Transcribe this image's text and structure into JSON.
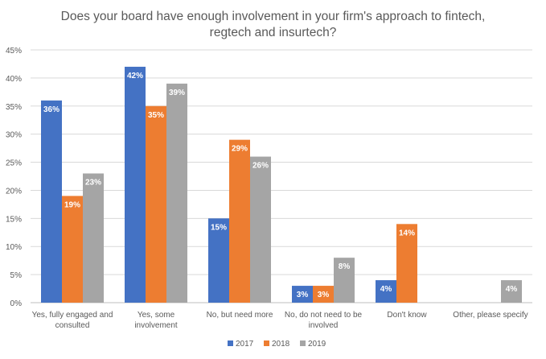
{
  "chart_data": {
    "type": "bar",
    "title_lines": [
      "Does your board have enough involvement in your firm's approach to fintech,",
      "regtech and insurtech?"
    ],
    "categories": [
      [
        "Yes, fully engaged and",
        "consulted"
      ],
      [
        "Yes, some",
        "involvement"
      ],
      [
        "No, but need more"
      ],
      [
        "No, do not need to be",
        "involved"
      ],
      [
        "Don't know"
      ],
      [
        "Other, please specify"
      ]
    ],
    "series": [
      {
        "name": "2017",
        "color": "#4472C4",
        "values": [
          36,
          42,
          15,
          3,
          4,
          null
        ]
      },
      {
        "name": "2018",
        "color": "#ED7D31",
        "values": [
          19,
          35,
          29,
          3,
          14,
          null
        ]
      },
      {
        "name": "2019",
        "color": "#A5A5A5",
        "values": [
          23,
          39,
          26,
          8,
          null,
          4
        ]
      }
    ],
    "ylim": [
      0,
      45
    ],
    "yticks": [
      0,
      5,
      10,
      15,
      20,
      25,
      30,
      35,
      40,
      45
    ],
    "ytick_labels": [
      "0%",
      "5%",
      "10%",
      "15%",
      "20%",
      "25%",
      "30%",
      "35%",
      "40%",
      "45%"
    ],
    "data_labels": [
      [
        "36%",
        "42%",
        "15%",
        "3%",
        "4%",
        null
      ],
      [
        "19%",
        "35%",
        "29%",
        "3%",
        "14%",
        null
      ],
      [
        "23%",
        "39%",
        "26%",
        "8%",
        null,
        "4%"
      ]
    ],
    "grid": true,
    "legend_position": "bottom"
  }
}
